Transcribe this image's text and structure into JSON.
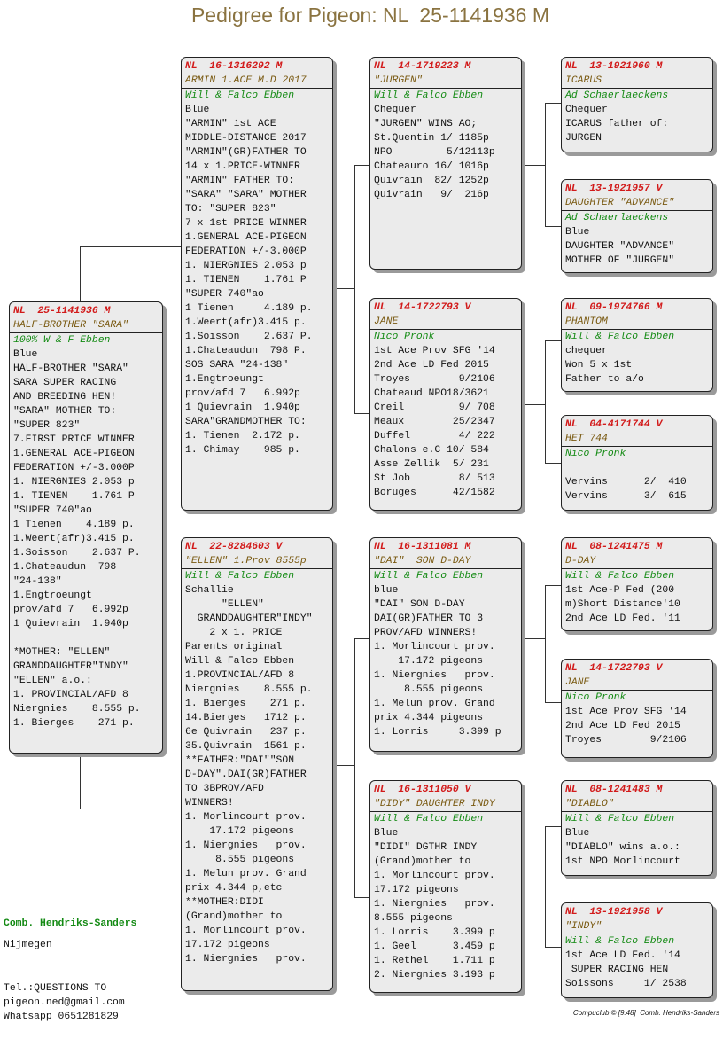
{
  "page_title": "Pedigree for Pigeon: NL  25-1141936 M",
  "subject": {
    "ring": "NL  25-1141936 M",
    "name": "HALF-BROTHER \"SARA\"",
    "breeder": "100% W & F Ebben",
    "lines": [
      "Blue",
      "HALF-BROTHER \"SARA\"",
      "SARA SUPER RACING",
      "AND BREEDING HEN!",
      "\"SARA\" MOTHER TO:",
      "\"SUPER 823\"",
      "7.FIRST PRICE WINNER",
      "1.GENERAL ACE-PIGEON",
      "FEDERATION +/-3.000P",
      "1. NIERGNIES 2.053 p",
      "1. TIENEN    1.761 P",
      "\"SUPER 740\"ao",
      "1 Tienen    4.189 p.",
      "1.Weert(afr)3.415 p.",
      "1.Soisson    2.637 P.",
      "1.Chateaudun  798",
      "\"24-138\"",
      "1.Engtroeungt",
      "prov/afd 7   6.992p",
      "1 Quievrain  1.940p",
      "",
      "*MOTHER: \"ELLEN\"",
      "GRANDDAUGHTER\"INDY\"",
      "\"ELLEN\" a.o.:",
      "1. PROVINCIAL/AFD 8",
      "Niergnies    8.555 p.",
      "1. Bierges    271 p."
    ]
  },
  "sire": {
    "ring": "NL  16-1316292 M",
    "name": "ARMIN 1.ACE M.D 2017",
    "breeder": "Will & Falco Ebben",
    "lines": [
      "Blue",
      "\"ARMIN\" 1st ACE",
      "MIDDLE-DISTANCE 2017",
      "\"ARMIN\"(GR)FATHER TO",
      "14 x 1.PRICE-WINNER",
      "\"ARMIN\" FATHER TO:",
      "\"SARA\" \"SARA\" MOTHER",
      "TO: \"SUPER 823\"",
      "7 x 1st PRICE WINNER",
      "1.GENERAL ACE-PIGEON",
      "FEDERATION +/-3.000P",
      "1. NIERGNIES 2.053 p",
      "1. TIENEN    1.761 P",
      "\"SUPER 740\"ao",
      "1 Tienen     4.189 p.",
      "1.Weert(afr)3.415 p.",
      "1.Soisson    2.637 P.",
      "1.Chateaudun  798 P.",
      "SOS SARA \"24-138\"",
      "1.Engtroeungt",
      "prov/afd 7   6.992p",
      "1 Quievrain  1.940p",
      "SARA\"GRANDMOTHER TO:",
      "1. Tienen  2.172 p.",
      "1. Chimay    985 p."
    ]
  },
  "dam": {
    "ring": "NL  22-8284603 V",
    "name": "\"ELLEN\" 1.Prov 8555p",
    "breeder": "Will & Falco Ebben",
    "lines": [
      "Schallie",
      "      \"ELLEN\"",
      "  GRANDDAUGHTER\"INDY\"",
      "    2 x 1. PRICE",
      "Parents original",
      "Will & Falco Ebben",
      "1.PROVINCIAL/AFD 8",
      "Niergnies    8.555 p.",
      "1. Bierges    271 p.",
      "14.Bierges   1712 p.",
      "6e Quivrain   237 p.",
      "35.Quivrain  1561 p.",
      "**FATHER:\"DAI\"\"SON",
      "D-DAY\".DAI(GR)FATHER",
      "TO 3BPROV/AFD",
      "WINNERS!",
      "1. Morlincourt prov.",
      "    17.172 pigeons",
      "1. Niergnies   prov.",
      "     8.555 pigeons",
      "1. Melun prov. Grand",
      "prix 4.344 p,etc",
      "**MOTHER:DIDI",
      "(Grand)mother to",
      "1. Morlincourt prov.",
      "17.172 pigeons",
      "1. Niergnies   prov."
    ]
  },
  "sire_sire": {
    "ring": "NL  14-1719223 M",
    "name": "\"JURGEN\"",
    "breeder": "Will & Falco Ebben",
    "lines": [
      "Chequer",
      "\"JURGEN\" WINS AO;",
      "St.Quentin 1/ 1185p",
      "NPO         5/12113p",
      "Chateauro 16/ 1016p",
      "Quivrain  82/ 1252p",
      "Quivrain   9/  216p"
    ]
  },
  "sire_dam": {
    "ring": "NL  14-1722793 V",
    "name": "JANE",
    "breeder": "Nico Pronk",
    "lines": [
      "1st Ace Prov SFG '14",
      "2nd Ace LD Fed 2015",
      "Troyes        9/2106",
      "Chateaud NPO18/3621",
      "Creil         9/ 708",
      "Meaux        25/2347",
      "Duffel        4/ 222",
      "Chalons e.C 10/ 584",
      "Asse Zellik  5/ 231",
      "St Job        8/ 513",
      "Boruges      42/1582"
    ]
  },
  "dam_sire": {
    "ring": "NL  16-1311081 M",
    "name": "\"DAI\"  SON D-DAY",
    "breeder": "Will & Falco Ebben",
    "lines": [
      "blue",
      "\"DAI\" SON D-DAY",
      "DAI(GR)FATHER TO 3",
      "PROV/AFD WINNERS!",
      "1. Morlincourt prov.",
      "    17.172 pigeons",
      "1. Niergnies   prov.",
      "     8.555 pigeons",
      "1. Melun prov. Grand",
      "prix 4.344 pigeons",
      "1. Lorris     3.399 p"
    ]
  },
  "dam_dam": {
    "ring": "NL  16-1311050 V",
    "name": "\"DIDY\" DAUGHTER INDY",
    "breeder": "Will & Falco Ebben",
    "lines": [
      "Blue",
      "\"DIDI\" DGTHR INDY",
      "(Grand)mother to",
      "1. Morlincourt prov.",
      "17.172 pigeons",
      "1. Niergnies   prov.",
      "8.555 pigeons",
      "1. Lorris    3.399 p",
      "1. Geel      3.459 p",
      "1. Rethel    1.711 p",
      "2. Niergnies 3.193 p"
    ]
  },
  "gg1": {
    "ring": "NL  13-1921960 M",
    "name": "ICARUS",
    "breeder": "Ad Schaerlaeckens",
    "lines": [
      "Chequer",
      "ICARUS father of:",
      "JURGEN"
    ]
  },
  "gg2": {
    "ring": "NL  13-1921957 V",
    "name": "DAUGHTER \"ADVANCE\"",
    "breeder": "Ad Schaerlaeckens",
    "lines": [
      "Blue",
      "DAUGHTER \"ADVANCE\"",
      "MOTHER OF \"JURGEN\""
    ]
  },
  "gg3": {
    "ring": "NL  09-1974766 M",
    "name": "PHANTOM",
    "breeder": "Will & Falco Ebben",
    "lines": [
      "chequer",
      "Won 5 x 1st",
      "Father to a/o"
    ]
  },
  "gg4": {
    "ring": "NL  04-4171744 V",
    "name": "HET 744",
    "breeder": "Nico Pronk",
    "lines": [
      "",
      "Vervins      2/  410",
      "Vervins      3/  615"
    ]
  },
  "gg5": {
    "ring": "NL  08-1241475 M",
    "name": "D-DAY",
    "breeder": "Will & Falco Ebben",
    "lines": [
      "1st Ace-P Fed (200",
      "m)Short Distance'10",
      "2nd Ace LD Fed. '11"
    ]
  },
  "gg6": {
    "ring": "NL  14-1722793 V",
    "name": "JANE",
    "breeder": "Nico Pronk",
    "lines": [
      "1st Ace Prov SFG '14",
      "2nd Ace LD Fed 2015",
      "Troyes        9/2106"
    ]
  },
  "gg7": {
    "ring": "NL  08-1241483 M",
    "name": "\"DIABLO\"",
    "breeder": "Will & Falco Ebben",
    "lines": [
      "Blue",
      "\"DIABLO\" wins a.o.:",
      "1st NPO Morlincourt"
    ]
  },
  "gg8": {
    "ring": "NL  13-1921958 V",
    "name": "\"INDY\"",
    "breeder": "Will & Falco Ebben",
    "lines": [
      "1st Ace LD Fed. '14",
      " SUPER RACING HEN",
      "Soissons     1/ 2538"
    ]
  },
  "owner": {
    "club": "Comb. Hendriks-Sanders",
    "city": "Nijmegen",
    "contact": [
      "Tel.:QUESTIONS TO",
      "pigeon.ned@gmail.com",
      "Whatsapp 0651281829"
    ]
  },
  "footer": "Compuclub © [9.48]  Comb. Hendriks-Sanders"
}
